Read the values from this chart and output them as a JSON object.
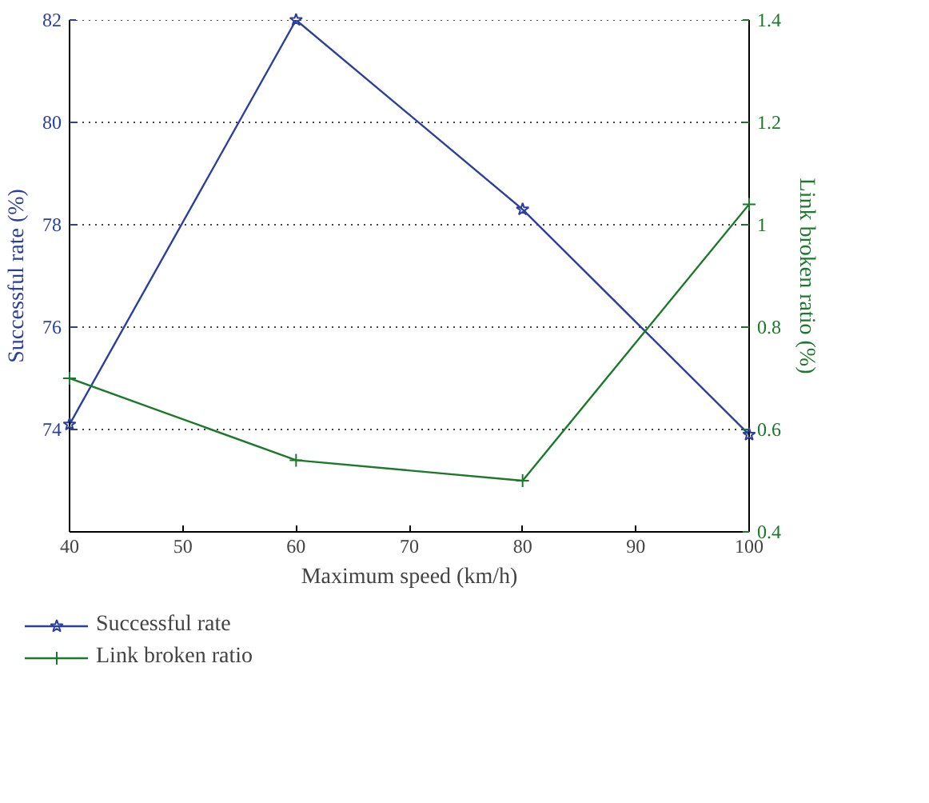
{
  "chart_data": {
    "type": "line",
    "xlabel": "Maximum speed (km/h)",
    "ylabel": "Successful rate (%)",
    "y2label": "Link broken ratio (%)",
    "x": [
      40,
      60,
      80,
      100
    ],
    "series": [
      {
        "name": "Successful rate",
        "color": "#2b3f9e",
        "values": [
          74.1,
          82,
          78.3,
          73.9
        ],
        "marker": "star"
      },
      {
        "name": "Link broken ratio",
        "color": "#1a7a2a",
        "values": [
          0.7,
          0.54,
          0.5,
          1.04
        ],
        "axis": "y2",
        "marker": "cross"
      }
    ],
    "xlim": [
      40,
      100
    ],
    "xticks": [
      40,
      50,
      60,
      70,
      80,
      90,
      100
    ],
    "ylim": [
      72,
      82
    ],
    "yticks": [
      74,
      76,
      78,
      80,
      82
    ],
    "y2lim": [
      0.4,
      1.4
    ],
    "y2ticks": [
      0.4,
      0.6,
      0.8,
      1,
      1.2,
      1.4
    ],
    "grid": "y",
    "legend": "bottom",
    "line_style": "solid"
  }
}
